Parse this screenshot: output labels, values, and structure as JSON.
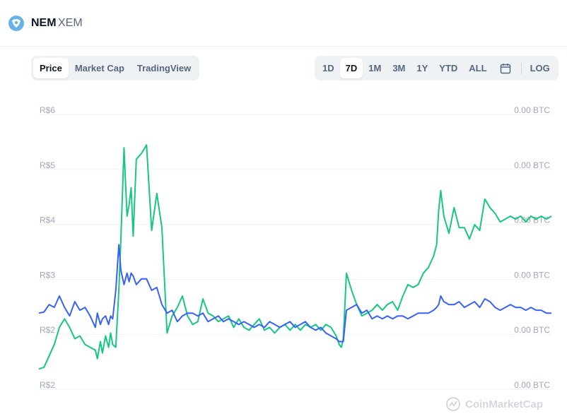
{
  "header": {
    "name": "NEM",
    "symbol": "XEM",
    "logo_icon": "nem-logo-icon",
    "logo_color": "#67b2e8"
  },
  "tabs": [
    {
      "label": "Price",
      "active": true
    },
    {
      "label": "Market Cap",
      "active": false
    },
    {
      "label": "TradingView",
      "active": false
    }
  ],
  "ranges": [
    {
      "label": "1D",
      "active": false
    },
    {
      "label": "7D",
      "active": true
    },
    {
      "label": "1M",
      "active": false
    },
    {
      "label": "3M",
      "active": false
    },
    {
      "label": "1Y",
      "active": false
    },
    {
      "label": "YTD",
      "active": false
    },
    {
      "label": "ALL",
      "active": false
    }
  ],
  "log_label": "LOG",
  "watermark": "CoinMarketCap",
  "chart_data": {
    "type": "line",
    "title": "",
    "xlabel": "",
    "ylabel": "",
    "grid": true,
    "left_axis": {
      "ticks": [
        "R$6",
        "R$5",
        "R$4",
        "R$3",
        "R$2",
        "R$2"
      ],
      "ylim": [
        1.6,
        6
      ]
    },
    "right_axis": {
      "ticks": [
        "0.00 BTC",
        "0.00 BTC",
        "0.00 BTC",
        "0.00 BTC",
        "0.00 BTC",
        "0.00 BTC"
      ]
    },
    "x": [
      0,
      5,
      10,
      15,
      20,
      25,
      30,
      35,
      40,
      45,
      50,
      55,
      57,
      60,
      62,
      65,
      68,
      70,
      72,
      75,
      78,
      80,
      83,
      86,
      88,
      90,
      92,
      95,
      100,
      105,
      110,
      115,
      120,
      125,
      130,
      135,
      140,
      145,
      150,
      155,
      160,
      165,
      170,
      175,
      180,
      185,
      190,
      195,
      200,
      205,
      210,
      215,
      220,
      225,
      230,
      235,
      240,
      245,
      250,
      255,
      260,
      265,
      270,
      275,
      280,
      285,
      290,
      293,
      295,
      297,
      300,
      305,
      310,
      315,
      320,
      325,
      330,
      335,
      340,
      345,
      350,
      355,
      360,
      365,
      370,
      375,
      380,
      385,
      388,
      390,
      392,
      395,
      400,
      405,
      410,
      415,
      420,
      425,
      430,
      435,
      440,
      445,
      450,
      455,
      460,
      465,
      470,
      475,
      480,
      485,
      490,
      495,
      500
    ],
    "series": [
      {
        "color": "#16c784",
        "values": [
          1.82,
          1.85,
          2.05,
          2.25,
          2.55,
          2.7,
          2.55,
          2.35,
          2.4,
          2.25,
          2.2,
          2.15,
          2.0,
          2.3,
          2.1,
          2.4,
          2.2,
          2.45,
          2.25,
          2.2,
          3.2,
          4.1,
          5.7,
          4.5,
          4.7,
          5.0,
          4.15,
          5.5,
          5.6,
          5.75,
          4.25,
          4.9,
          4.3,
          2.45,
          2.75,
          2.9,
          3.1,
          2.75,
          2.6,
          2.65,
          3.05,
          2.8,
          2.75,
          2.65,
          2.7,
          2.75,
          2.55,
          2.7,
          2.55,
          2.5,
          2.6,
          2.7,
          2.5,
          2.55,
          2.45,
          2.55,
          2.6,
          2.5,
          2.6,
          2.5,
          2.6,
          2.55,
          2.6,
          2.5,
          2.6,
          2.55,
          2.4,
          2.25,
          2.2,
          2.35,
          3.5,
          3.2,
          2.95,
          2.75,
          2.8,
          2.85,
          2.95,
          2.85,
          2.95,
          3.0,
          2.85,
          3.1,
          3.3,
          3.25,
          3.3,
          3.5,
          3.6,
          3.8,
          4.0,
          4.6,
          4.95,
          4.5,
          4.2,
          4.65,
          4.3,
          4.3,
          4.1,
          4.35,
          4.25,
          4.8,
          4.65,
          4.55,
          4.4,
          4.45,
          4.5,
          4.45,
          4.5,
          4.4,
          4.5,
          4.45,
          4.5,
          4.45,
          4.5
        ]
      },
      {
        "color": "#3861fb",
        "values": [
          2.8,
          2.82,
          2.95,
          2.9,
          3.1,
          2.9,
          2.75,
          3.0,
          2.85,
          2.9,
          2.75,
          2.55,
          2.8,
          2.6,
          2.7,
          2.75,
          2.6,
          2.75,
          2.7,
          3.2,
          4.0,
          3.55,
          3.3,
          3.5,
          3.35,
          3.5,
          3.45,
          3.3,
          3.4,
          3.4,
          3.2,
          3.25,
          2.95,
          2.8,
          2.85,
          2.65,
          2.75,
          2.8,
          2.8,
          2.75,
          2.8,
          2.65,
          2.7,
          2.75,
          2.65,
          2.7,
          2.65,
          2.6,
          2.65,
          2.6,
          2.55,
          2.6,
          2.55,
          2.65,
          2.6,
          2.55,
          2.6,
          2.65,
          2.55,
          2.6,
          2.65,
          2.55,
          2.5,
          2.55,
          2.45,
          2.4,
          2.35,
          2.3,
          2.3,
          2.3,
          2.85,
          2.9,
          2.95,
          2.8,
          2.85,
          2.7,
          2.75,
          2.7,
          2.75,
          2.7,
          2.75,
          2.75,
          2.7,
          2.75,
          2.8,
          2.8,
          2.8,
          2.85,
          2.9,
          2.95,
          3.1,
          3.0,
          2.95,
          2.95,
          3.0,
          2.9,
          2.95,
          3.0,
          2.9,
          3.05,
          3.0,
          2.9,
          2.85,
          2.9,
          2.95,
          2.9,
          2.9,
          2.85,
          2.9,
          2.85,
          2.85,
          2.8,
          2.8
        ]
      }
    ]
  }
}
